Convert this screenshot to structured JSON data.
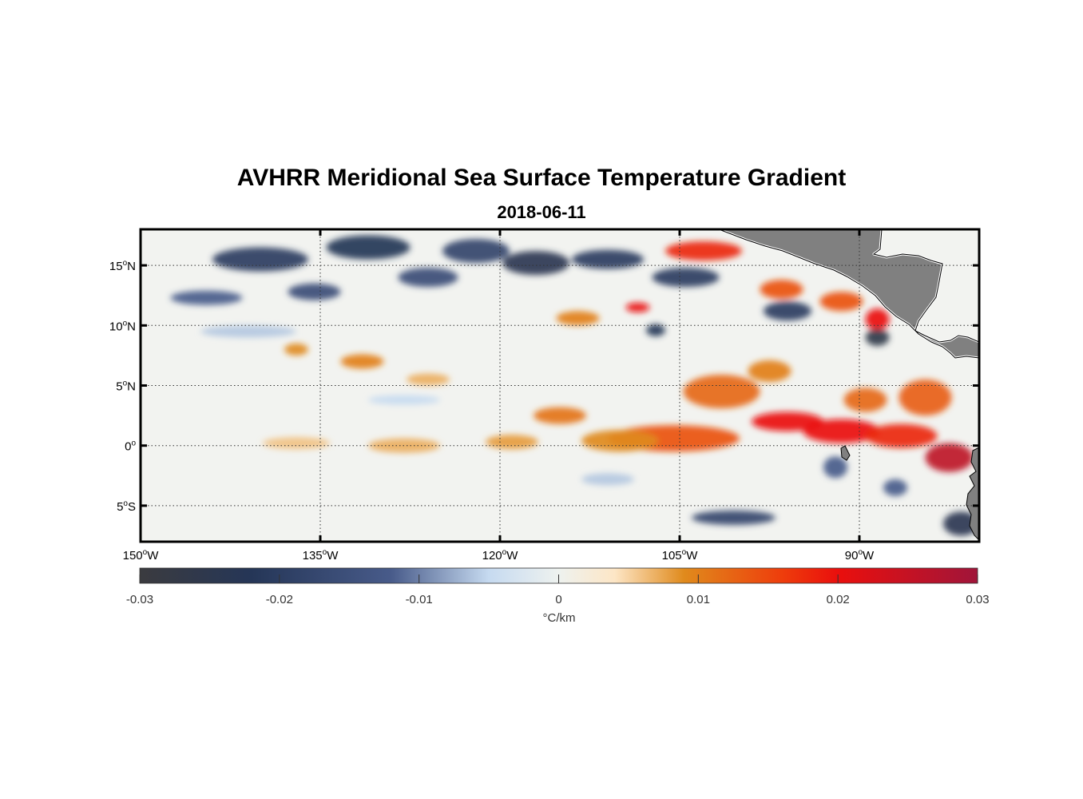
{
  "title": "AVHRR Meridional Sea Surface Temperature Gradient",
  "subtitle": "2018-06-11",
  "colorbar": {
    "unit_label": "°C/km",
    "ticks": [
      "-0.03",
      "-0.02",
      "-0.01",
      "0",
      "0.01",
      "0.02",
      "0.03"
    ],
    "range": [
      -0.03,
      0.03
    ],
    "stops": [
      {
        "v": -0.03,
        "c": "#3b3b3f"
      },
      {
        "v": -0.022,
        "c": "#253657"
      },
      {
        "v": -0.012,
        "c": "#485b8a"
      },
      {
        "v": -0.005,
        "c": "#c6daf0"
      },
      {
        "v": 0.0,
        "c": "#eef2ef"
      },
      {
        "v": 0.004,
        "c": "#fde6c6"
      },
      {
        "v": 0.009,
        "c": "#e08a1c"
      },
      {
        "v": 0.016,
        "c": "#ee3d0c"
      },
      {
        "v": 0.02,
        "c": "#ea0f0d"
      },
      {
        "v": 0.03,
        "c": "#a0153a"
      }
    ]
  },
  "chart_data": {
    "type": "heatmap",
    "variable": "meridional SST gradient",
    "units": "°C/km",
    "lon_range": [
      -150,
      -80
    ],
    "lat_range": [
      -8,
      18
    ],
    "x_ticks": [
      {
        "value": -150,
        "deg": "150",
        "hemi": "W"
      },
      {
        "value": -135,
        "deg": "135",
        "hemi": "W"
      },
      {
        "value": -120,
        "deg": "120",
        "hemi": "W"
      },
      {
        "value": -105,
        "deg": "105",
        "hemi": "W"
      },
      {
        "value": -90,
        "deg": "90",
        "hemi": "W"
      }
    ],
    "y_ticks": [
      {
        "value": 15,
        "deg": "15",
        "hemi": "N"
      },
      {
        "value": 10,
        "deg": "10",
        "hemi": "N"
      },
      {
        "value": 5,
        "deg": "5",
        "hemi": "N"
      },
      {
        "value": 0,
        "deg": "0",
        "hemi": ""
      },
      {
        "value": -5,
        "deg": "5",
        "hemi": "S"
      }
    ],
    "grid": true,
    "land_color": "#808080",
    "features": [
      {
        "lon": -105.5,
        "lat": 0.6,
        "lon_w": 5.5,
        "lat_w": 1.1,
        "value": 0.014
      },
      {
        "lon": -110,
        "lat": 0.4,
        "lon_w": 3.2,
        "lat_w": 0.9,
        "value": 0.009
      },
      {
        "lon": -115,
        "lat": 2.5,
        "lon_w": 2.2,
        "lat_w": 0.7,
        "value": 0.011
      },
      {
        "lon": -119,
        "lat": 0.3,
        "lon_w": 2.2,
        "lat_w": 0.6,
        "value": 0.008
      },
      {
        "lon": -128,
        "lat": 0.0,
        "lon_w": 3.0,
        "lat_w": 0.6,
        "value": 0.007
      },
      {
        "lon": -137,
        "lat": 0.2,
        "lon_w": 2.8,
        "lat_w": 0.5,
        "value": 0.006
      },
      {
        "lon": -101.5,
        "lat": 4.5,
        "lon_w": 3.2,
        "lat_w": 1.4,
        "value": 0.012
      },
      {
        "lon": -97.5,
        "lat": 6.2,
        "lon_w": 1.8,
        "lat_w": 0.9,
        "value": 0.01
      },
      {
        "lon": -96,
        "lat": 2.0,
        "lon_w": 3.0,
        "lat_w": 0.8,
        "value": 0.02
      },
      {
        "lon": -91.5,
        "lat": 1.2,
        "lon_w": 3.2,
        "lat_w": 1.0,
        "value": 0.02
      },
      {
        "lon": -86.5,
        "lat": 0.8,
        "lon_w": 3.0,
        "lat_w": 1.0,
        "value": 0.018
      },
      {
        "lon": -82.5,
        "lat": -1.0,
        "lon_w": 2.0,
        "lat_w": 1.2,
        "value": 0.026
      },
      {
        "lon": -84.5,
        "lat": 4.0,
        "lon_w": 2.2,
        "lat_w": 1.5,
        "value": 0.013
      },
      {
        "lon": -89.5,
        "lat": 3.8,
        "lon_w": 1.8,
        "lat_w": 1.0,
        "value": 0.012
      },
      {
        "lon": -103,
        "lat": 16.2,
        "lon_w": 3.2,
        "lat_w": 0.8,
        "value": 0.018
      },
      {
        "lon": -96.5,
        "lat": 13.0,
        "lon_w": 1.8,
        "lat_w": 0.8,
        "value": 0.014
      },
      {
        "lon": -91.5,
        "lat": 12.0,
        "lon_w": 1.8,
        "lat_w": 0.8,
        "value": 0.014
      },
      {
        "lon": -88.5,
        "lat": 10.5,
        "lon_w": 1.0,
        "lat_w": 0.9,
        "value": 0.02
      },
      {
        "lon": -108.5,
        "lat": 11.5,
        "lon_w": 1.0,
        "lat_w": 0.4,
        "value": 0.02
      },
      {
        "lon": -113.5,
        "lat": 10.6,
        "lon_w": 1.8,
        "lat_w": 0.6,
        "value": 0.01
      },
      {
        "lon": -131.5,
        "lat": 7.0,
        "lon_w": 1.8,
        "lat_w": 0.6,
        "value": 0.01
      },
      {
        "lon": -137,
        "lat": 8.0,
        "lon_w": 1.0,
        "lat_w": 0.5,
        "value": 0.009
      },
      {
        "lon": -126,
        "lat": 5.5,
        "lon_w": 1.8,
        "lat_w": 0.5,
        "value": 0.007
      },
      {
        "lon": -140,
        "lat": 15.5,
        "lon_w": 4.0,
        "lat_w": 1.0,
        "value": -0.02
      },
      {
        "lon": -131,
        "lat": 16.5,
        "lon_w": 3.5,
        "lat_w": 1.0,
        "value": -0.022
      },
      {
        "lon": -122,
        "lat": 16.2,
        "lon_w": 2.8,
        "lat_w": 1.0,
        "value": -0.018
      },
      {
        "lon": -117,
        "lat": 15.2,
        "lon_w": 2.8,
        "lat_w": 1.0,
        "value": -0.024
      },
      {
        "lon": -111,
        "lat": 15.5,
        "lon_w": 3.0,
        "lat_w": 0.8,
        "value": -0.02
      },
      {
        "lon": -104.5,
        "lat": 14.0,
        "lon_w": 2.8,
        "lat_w": 0.8,
        "value": -0.02
      },
      {
        "lon": -135.5,
        "lat": 12.8,
        "lon_w": 2.2,
        "lat_w": 0.7,
        "value": -0.016
      },
      {
        "lon": -126,
        "lat": 14.0,
        "lon_w": 2.5,
        "lat_w": 0.8,
        "value": -0.016
      },
      {
        "lon": -144.5,
        "lat": 12.3,
        "lon_w": 3.0,
        "lat_w": 0.6,
        "value": -0.012
      },
      {
        "lon": -107,
        "lat": 9.6,
        "lon_w": 0.8,
        "lat_w": 0.5,
        "value": -0.022
      },
      {
        "lon": -88.5,
        "lat": 9.0,
        "lon_w": 1.0,
        "lat_w": 0.7,
        "value": -0.026
      },
      {
        "lon": -96,
        "lat": 11.2,
        "lon_w": 2.0,
        "lat_w": 0.8,
        "value": -0.02
      },
      {
        "lon": -100.5,
        "lat": -6.0,
        "lon_w": 3.5,
        "lat_w": 0.6,
        "value": -0.018
      },
      {
        "lon": -81.5,
        "lat": -6.5,
        "lon_w": 1.5,
        "lat_w": 1.0,
        "value": -0.024
      },
      {
        "lon": -87,
        "lat": -3.5,
        "lon_w": 1.0,
        "lat_w": 0.7,
        "value": -0.012
      },
      {
        "lon": -92,
        "lat": -1.8,
        "lon_w": 1.0,
        "lat_w": 0.9,
        "value": -0.012
      },
      {
        "lon": -111,
        "lat": -2.8,
        "lon_w": 2.2,
        "lat_w": 0.5,
        "value": -0.006
      },
      {
        "lon": -141,
        "lat": 9.5,
        "lon_w": 4.0,
        "lat_w": 0.5,
        "value": -0.006
      },
      {
        "lon": -128,
        "lat": 3.8,
        "lon_w": 3.0,
        "lat_w": 0.4,
        "value": -0.005
      }
    ]
  }
}
